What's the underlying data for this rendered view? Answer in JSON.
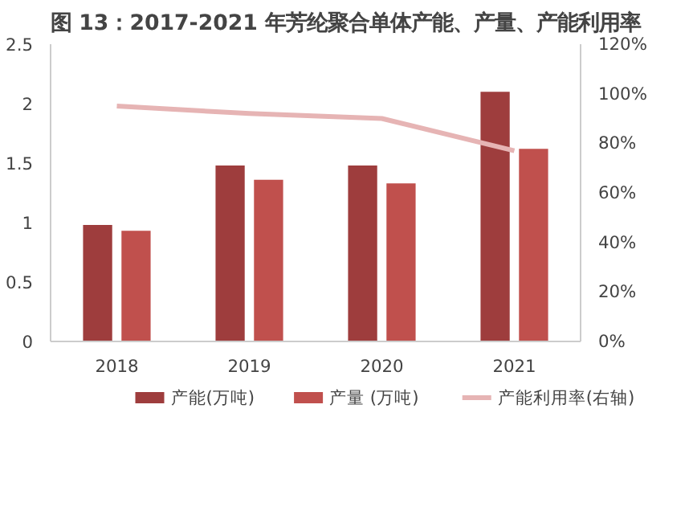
{
  "chart_data": {
    "type": "bar",
    "title": "图 13：2017-2021 年芳纶聚合单体产能、产量、产能利用率",
    "categories": [
      "2018",
      "2019",
      "2020",
      "2021"
    ],
    "series": [
      {
        "name": "产能(万吨)",
        "color": "#9e3d3d",
        "values": [
          0.98,
          1.48,
          1.48,
          2.1
        ]
      },
      {
        "name": "产量 (万吨)",
        "color": "#c0504d",
        "values": [
          0.93,
          1.36,
          1.33,
          1.62
        ]
      },
      {
        "name": "产能利用率(右轴)",
        "color": "#e6b4b4",
        "type": "line",
        "axis": "y2",
        "values": [
          95,
          92,
          90,
          77
        ]
      }
    ],
    "ylim": [
      0,
      2.5
    ],
    "yticks": [
      0,
      {
        "value": 0.5,
        "label": "0.5"
      },
      1,
      {
        "value": 1.5,
        "label": "1.5"
      },
      2,
      {
        "value": 2.5,
        "label": "2.5"
      }
    ],
    "y2lim": [
      0,
      120
    ],
    "y2ticks": [
      {
        "value": 0,
        "label": "0%"
      },
      {
        "value": 20,
        "label": "20%"
      },
      {
        "value": 40,
        "label": "40%"
      },
      {
        "value": 60,
        "label": "60%"
      },
      {
        "value": 80,
        "label": "80%"
      },
      {
        "value": 100,
        "label": "100%"
      },
      {
        "value": 120,
        "label": "120%"
      }
    ],
    "grid": false,
    "legend": "bottom"
  }
}
